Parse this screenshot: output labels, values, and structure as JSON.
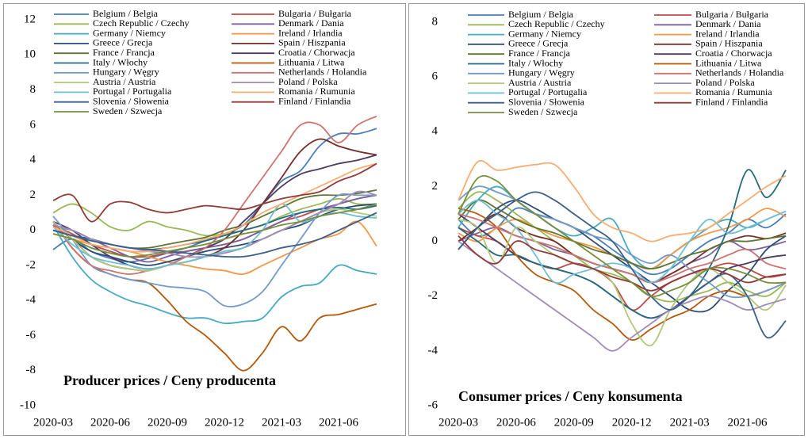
{
  "chart_data": [
    {
      "type": "line",
      "title": "Producer prices / Ceny producenta",
      "categories": [
        "2020-03",
        null,
        null,
        "2020-06",
        null,
        null,
        "2020-09",
        null,
        null,
        "2020-12",
        null,
        null,
        "2021-03",
        null,
        null,
        "2021-06",
        null,
        null
      ],
      "ylim": [
        -10,
        12
      ],
      "yticks": [
        -10,
        -8,
        -6,
        -4,
        -2,
        0,
        2,
        4,
        6,
        8,
        10,
        12
      ],
      "legend": "top",
      "series": [
        {
          "name": "Belgium / Belgia",
          "color": "#4a7ebb",
          "values": [
            -1.1,
            -0.5,
            -1.2,
            -1.6,
            -1.8,
            -1.6,
            -1.3,
            -1,
            -0.6,
            -0.2,
            0.3,
            1.5,
            2.8,
            3.4,
            4.8,
            5.5,
            5.5,
            5.8
          ]
        },
        {
          "name": "Bulgaria / Bułgaria",
          "color": "#be4b48",
          "values": [
            0.3,
            -0.2,
            -0.8,
            -1.2,
            -1.5,
            -1.5,
            -1.3,
            -1.2,
            -1,
            -0.8,
            -0.5,
            0,
            0.5,
            0.8,
            1.2,
            1.5,
            1.8,
            2
          ]
        },
        {
          "name": "Czech Republic / Czechy",
          "color": "#98b954",
          "values": [
            1,
            1.5,
            1,
            0.2,
            0,
            0.5,
            0.2,
            0,
            -0.3,
            -0.2,
            0,
            0.3,
            0.8,
            1.2,
            1.5,
            1.8,
            1.5,
            1.5
          ]
        },
        {
          "name": "Denmark / Dania",
          "color": "#7d60a0",
          "values": [
            0.2,
            0,
            -0.5,
            -1,
            -1.5,
            -1.8,
            -1.5,
            -1.2,
            -1,
            -0.8,
            -0.5,
            0,
            0.5,
            1,
            1.2,
            1.5,
            1.8,
            2
          ]
        },
        {
          "name": "Germany / Niemcy",
          "color": "#46aac5",
          "values": [
            0.3,
            -1.5,
            -2.8,
            -3.5,
            -4,
            -4.3,
            -4.7,
            -5,
            -5,
            -5.3,
            -5.2,
            -5,
            -3.8,
            -3.2,
            -3,
            -2,
            -2.3,
            -2.5
          ]
        },
        {
          "name": "Ireland / Irlandia",
          "color": "#f79646",
          "values": [
            -0.2,
            -0.5,
            -0.8,
            -1,
            -1.2,
            -1.5,
            -1.8,
            -2,
            -2.2,
            -2.3,
            -2.5,
            -2,
            -1.5,
            -1,
            -0.5,
            -0.2,
            0.5,
            -0.9
          ]
        },
        {
          "name": "Greece / Grecja",
          "color": "#2c4d75",
          "values": [
            0.5,
            -0.5,
            -1.2,
            -1.5,
            -1.8,
            -2,
            -1.8,
            -1.5,
            -1.2,
            -1,
            -0.8,
            -0.5,
            0,
            0.3,
            0.8,
            1.2,
            1.4,
            1.5
          ]
        },
        {
          "name": "Spain / Hiszpania",
          "color": "#772c2a",
          "values": [
            0.3,
            -0.5,
            -1.5,
            -2,
            -2.2,
            -2.3,
            -2,
            -1.8,
            -1.5,
            -1,
            0,
            1.5,
            3,
            4.5,
            5.2,
            4.8,
            4.5,
            4.3
          ]
        },
        {
          "name": "France / Francja",
          "color": "#5f7530",
          "values": [
            0,
            -0.3,
            -0.5,
            -0.8,
            -1,
            -1,
            -0.8,
            -0.6,
            -0.4,
            0,
            0.3,
            0.8,
            1.3,
            1.8,
            2,
            2,
            2.1,
            2.3
          ]
        },
        {
          "name": "Croatia / Chorwacja",
          "color": "#4d3b62",
          "values": [
            0.5,
            0,
            -0.8,
            -1.5,
            -2,
            -2.2,
            -2,
            -1.5,
            -1,
            -0.5,
            0.5,
            1.5,
            2.5,
            3.2,
            3.5,
            3.8,
            4,
            4.3
          ]
        },
        {
          "name": "Italy / Włochy",
          "color": "#276a7c",
          "values": [
            0,
            -0.3,
            -0.5,
            -0.8,
            -1,
            -1.1,
            -1,
            -0.8,
            -0.6,
            -0.3,
            0,
            0.3,
            0.7,
            1,
            1.2,
            1.3,
            1.2,
            1.4
          ]
        },
        {
          "name": "Lithuania / Litwa",
          "color": "#b65708",
          "values": [
            0.5,
            -1,
            -2,
            -2.5,
            -2.8,
            -3,
            -4,
            -5.2,
            -6,
            -7,
            -8,
            -7,
            -5.5,
            -6.3,
            -5,
            -4.8,
            -4.5,
            -4.2
          ]
        },
        {
          "name": "Hungary / Węgry",
          "color": "#729aca",
          "values": [
            0.8,
            -0.5,
            -2,
            -2.5,
            -2.8,
            -3,
            -3.2,
            -3.3,
            -3.5,
            -4.3,
            -4.2,
            -3.5,
            -2,
            -0.5,
            1,
            2,
            2,
            2
          ]
        },
        {
          "name": "Netherlands / Holandia",
          "color": "#cd7371",
          "values": [
            0.5,
            -1,
            -2,
            -2.3,
            -2.5,
            -2.3,
            -2,
            -1.5,
            -1,
            0,
            1.5,
            3,
            4.5,
            6,
            6,
            5,
            6,
            6.5
          ]
        },
        {
          "name": "Austria / Austria",
          "color": "#afc97a",
          "values": [
            0.5,
            -0.5,
            -1.5,
            -2,
            -2.2,
            -2.3,
            -2,
            -1.8,
            -1.5,
            -1.2,
            -1,
            -0.5,
            0,
            0.5,
            1,
            1.2,
            1,
            0.8
          ]
        },
        {
          "name": "Poland / Polska",
          "color": "#a18ab9",
          "values": [
            0.3,
            0,
            -0.5,
            -0.8,
            -1,
            -1.2,
            -1.3,
            -1.5,
            -1.5,
            -1.3,
            -1,
            -0.5,
            0,
            0.5,
            1,
            1.5,
            2.2,
            2
          ]
        },
        {
          "name": "Portugal / Portugalia",
          "color": "#6ebfd5",
          "values": [
            0.2,
            -0.8,
            -1.5,
            -1.8,
            -2,
            -2.2,
            -2,
            -1.8,
            -1.5,
            -1.2,
            -1,
            0,
            1.5,
            0.5,
            0.8,
            1,
            0.8,
            0.7
          ]
        },
        {
          "name": "Romania / Rumunia",
          "color": "#f9ac72",
          "values": [
            0.2,
            -0.3,
            -0.8,
            -1,
            -1.2,
            -1.2,
            -1,
            -0.8,
            -0.5,
            -0.2,
            0.3,
            1,
            1.5,
            2,
            2.5,
            3,
            3.5,
            3.8
          ]
        },
        {
          "name": "Slovenia / Słowenia",
          "color": "#3a5f8b",
          "values": [
            0,
            -0.3,
            -0.6,
            -0.8,
            -1,
            -1.1,
            -1.2,
            -1.3,
            -1.4,
            -1.5,
            -1.5,
            -1.3,
            -1,
            -0.8,
            -0.5,
            0,
            0.5,
            1
          ]
        },
        {
          "name": "Finland / Finlandia",
          "color": "#923a38",
          "values": [
            1.7,
            2,
            0.5,
            1.5,
            1.6,
            1.2,
            1,
            1.2,
            1.4,
            1.3,
            1.2,
            1.5,
            1.8,
            2,
            2.2,
            2.8,
            3.2,
            3.8
          ]
        },
        {
          "name": "Sweden / Szwecja",
          "color": "#758f3d",
          "values": [
            -0.2,
            -0.5,
            -1,
            -1.3,
            -1.5,
            -1.4,
            -1.2,
            -1,
            -0.8,
            -0.5,
            -0.2,
            0,
            0.3,
            0.5,
            0.8,
            1,
            1.2,
            1.5
          ]
        }
      ]
    },
    {
      "type": "line",
      "title": "Consumer prices / Ceny konsumenta",
      "categories": [
        "2020-03",
        null,
        null,
        "2020-06",
        null,
        null,
        "2020-09",
        null,
        null,
        "2020-12",
        null,
        null,
        "2021-03",
        null,
        null,
        "2021-06",
        null,
        null
      ],
      "ylim": [
        -6,
        8
      ],
      "yticks": [
        -6,
        -4,
        -2,
        0,
        2,
        4,
        6,
        8
      ],
      "legend": "top",
      "series": [
        {
          "name": "Belgium / Belgia",
          "color": "#4a7ebb",
          "values": [
            0.8,
            0.2,
            0.5,
            1.2,
            1,
            0.8,
            0.5,
            0.2,
            -0.3,
            -0.8,
            -1.2,
            -1,
            -0.5,
            0,
            0.3,
            0.8,
            0.5,
            1
          ]
        },
        {
          "name": "Bulgaria / Bułgaria",
          "color": "#be4b48",
          "values": [
            0.5,
            0.2,
            0,
            -0.5,
            -0.8,
            -1,
            -0.8,
            -1,
            -1.5,
            -2.5,
            -2,
            -1.5,
            -1.2,
            -1,
            -0.8,
            -1,
            -1.3,
            -1.2
          ]
        },
        {
          "name": "Czech Republic / Czechy",
          "color": "#98b954",
          "values": [
            1.2,
            1.8,
            1.5,
            1,
            0.5,
            0,
            -0.5,
            -1,
            -1.2,
            -1.5,
            -2,
            -2.2,
            -2,
            -1.8,
            -1.5,
            -1.8,
            -2,
            -1.5
          ]
        },
        {
          "name": "Denmark / Dania",
          "color": "#7d60a0",
          "values": [
            0,
            0.3,
            0.5,
            0.2,
            0,
            -0.3,
            -0.5,
            -0.8,
            -1,
            -1.2,
            -1.5,
            -1.2,
            -0.8,
            -0.5,
            0,
            -0.3,
            -0.2,
            0
          ]
        },
        {
          "name": "Germany / Niemcy",
          "color": "#46aac5",
          "values": [
            0.5,
            1.5,
            2,
            1.5,
            1,
            0.5,
            0.2,
            0.5,
            0.8,
            -0.5,
            -1,
            -0.5,
            0,
            0.5,
            0.8,
            0.5,
            0.8,
            1.1
          ]
        },
        {
          "name": "Ireland / Irlandia",
          "color": "#f79646",
          "values": [
            0.3,
            0,
            0.5,
            0.8,
            0.5,
            0.2,
            0,
            -0.2,
            -0.5,
            -0.8,
            -1,
            -0.5,
            0,
            0.3,
            0.5,
            0.8,
            1.2,
            0.9
          ]
        },
        {
          "name": "Greece / Grecja",
          "color": "#2c4d75",
          "values": [
            -0.3,
            0.5,
            1.2,
            1.5,
            1.2,
            0.8,
            0.5,
            0,
            -0.5,
            -1,
            -1.5,
            -2,
            -2.5,
            -2.5,
            -1.8,
            -1.2,
            -0.3,
            0.2
          ]
        },
        {
          "name": "Spain / Hiszpania",
          "color": "#772c2a",
          "values": [
            0,
            0.5,
            1,
            0.5,
            0.2,
            0,
            -0.5,
            -0.8,
            -1,
            -1.2,
            -1.5,
            -1.2,
            -0.8,
            -0.3,
            0,
            0.2,
            0.1,
            0.3
          ]
        },
        {
          "name": "France / Francja",
          "color": "#5f7530",
          "values": [
            0.8,
            1.5,
            1.2,
            0.8,
            0.5,
            0.3,
            0,
            -0.3,
            -0.5,
            -0.8,
            -1,
            -0.8,
            -0.5,
            -0.3,
            0,
            0,
            0.1,
            0.2
          ]
        },
        {
          "name": "Croatia / Chorwacja",
          "color": "#4d3b62",
          "values": [
            1,
            0.5,
            0,
            -0.5,
            -0.8,
            -1,
            -1.2,
            -1.5,
            -2,
            -2.5,
            -2.8,
            -2.5,
            -2,
            -1.5,
            -1,
            -0.8,
            -0.6,
            -0.5
          ]
        },
        {
          "name": "Italy / Włochy",
          "color": "#276a7c",
          "values": [
            0.5,
            0,
            -0.5,
            -0.5,
            -0.8,
            -1,
            -1.2,
            -1.5,
            -2,
            -2.5,
            -2.8,
            -2.5,
            -2,
            -1,
            0.5,
            2.6,
            1.6,
            2.6
          ]
        },
        {
          "name": "Lithuania / Litwa",
          "color": "#b65708",
          "values": [
            1.2,
            1,
            0.5,
            -0.5,
            -1.2,
            -1.5,
            -1.8,
            -2.5,
            -3,
            -3.6,
            -3.2,
            -2.8,
            -2.5,
            -2,
            -1.8,
            -2,
            -1.8,
            -1.5
          ]
        },
        {
          "name": "Hungary / Węgry",
          "color": "#729aca",
          "values": [
            1.5,
            2,
            1.8,
            1.5,
            1,
            0.8,
            0.5,
            0.2,
            0,
            -0.5,
            -0.8,
            -0.5,
            -1,
            -1.5,
            -2,
            -2,
            -1.8,
            -1.5
          ]
        },
        {
          "name": "Netherlands / Holandia",
          "color": "#cd7371",
          "values": [
            1,
            0.8,
            0.5,
            0.2,
            0,
            -0.2,
            -0.5,
            -0.8,
            -1,
            -1.2,
            -1.5,
            -1.3,
            -1,
            -0.8,
            -0.5,
            -0.3,
            -0.8,
            -1
          ]
        },
        {
          "name": "Austria / Austria",
          "color": "#afc97a",
          "values": [
            0.8,
            0.5,
            -0.8,
            0.5,
            0,
            -0.5,
            -0.8,
            -1,
            -1.5,
            -3,
            -3.8,
            -2.5,
            -1.5,
            -1,
            -1.5,
            -2,
            -2.5,
            -1.6
          ]
        },
        {
          "name": "Poland / Polska",
          "color": "#a18ab9",
          "values": [
            0,
            -0.5,
            -1,
            -1.5,
            -2,
            -2.5,
            -3,
            -3.5,
            -4,
            -3.5,
            -3,
            -2.5,
            -2.2,
            -2,
            -2.2,
            -2.5,
            -2.3,
            -2.1
          ]
        },
        {
          "name": "Portugal / Portugalia",
          "color": "#6ebfd5",
          "values": [
            1,
            1.5,
            1,
            0.5,
            -0.5,
            -1.5,
            -1.2,
            -1,
            -0.8,
            -1,
            -1.5,
            -1,
            0,
            0.8,
            0.3,
            0.5,
            0.8,
            1.1
          ]
        },
        {
          "name": "Romania / Rumunia",
          "color": "#f9ac72",
          "values": [
            1.5,
            2.9,
            2.6,
            2.7,
            2.8,
            2.8,
            2,
            1,
            0.5,
            0.3,
            0,
            0.2,
            0.3,
            0.5,
            1,
            1.5,
            2,
            2.4
          ]
        },
        {
          "name": "Slovenia / Słowenia",
          "color": "#3a5f8b",
          "values": [
            -0.3,
            0.5,
            1,
            1.5,
            1.8,
            1.5,
            1,
            0.5,
            0,
            -1,
            -2,
            -2.5,
            -2,
            -1.5,
            -1.2,
            -2,
            -3.5,
            -2.9
          ]
        },
        {
          "name": "Finland / Finlandia",
          "color": "#923a38",
          "values": [
            0.2,
            -0.5,
            -0.8,
            0,
            -0.3,
            -0.5,
            -0.8,
            -1,
            -1.3,
            -1.5,
            -1.8,
            -1.5,
            -1.2,
            -1,
            -1.2,
            -1.5,
            -1.3,
            -1.2
          ]
        },
        {
          "name": "Sweden / Szwecja",
          "color": "#758f3d",
          "values": [
            1,
            2.3,
            2.2,
            1.5,
            1,
            0.5,
            0,
            -0.5,
            -1,
            -1.5,
            -2,
            -1.8,
            -1.5,
            -1,
            -1,
            -1.2,
            -1.5,
            -1.5
          ]
        }
      ]
    }
  ]
}
